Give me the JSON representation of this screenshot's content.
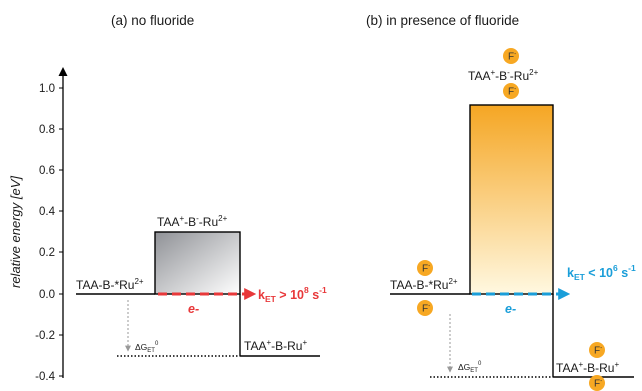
{
  "panels": {
    "a_title": "(a) no fluoride",
    "b_title": "(b) in presence of fluoride"
  },
  "axis": {
    "ylabel": "relative energy [eV]",
    "ticks": [
      "1.0",
      "0.8",
      "0.6",
      "0.4",
      "0.2",
      "0.0",
      "-0.2",
      "-0.4"
    ]
  },
  "panel_a": {
    "start_state": {
      "main": "TAA-B-*Ru",
      "sup": "2+"
    },
    "cs_state": {
      "p1": "TAA",
      "s1": "+",
      "p2": "-B",
      "s2": "-",
      "p3": "-Ru",
      "s3": "2+"
    },
    "final_state": {
      "p1": "TAA",
      "s1": "+",
      "p2": "-B-Ru",
      "s2": "+"
    },
    "electron": "e-",
    "rate": {
      "k": "k",
      "sub": "ET",
      "rel": " > 10",
      "exp": "8",
      "unit": " s",
      "unit_exp": "-1"
    },
    "dg": {
      "main": "ΔG",
      "sub": "ET",
      "sup": "0"
    },
    "colors": {
      "rate": "#e8383a",
      "box_dark": "#8f9196",
      "box_light": "#ffffff"
    }
  },
  "panel_b": {
    "start_state": {
      "main": "TAA-B-*Ru",
      "sup": "2+"
    },
    "cs_state": {
      "p1": "TAA",
      "s1": "+",
      "p2": "-B",
      "s2": "-",
      "p3": "-Ru",
      "s3": "2+"
    },
    "final_state": {
      "p1": "TAA",
      "s1": "+",
      "p2": "-B-Ru",
      "s2": "+"
    },
    "electron": "e-",
    "rate": {
      "k": "k",
      "sub": "ET",
      "rel": " < 10",
      "exp": "6",
      "unit": " s",
      "unit_exp": "-1"
    },
    "dg": {
      "main": "ΔG",
      "sub": "ET",
      "sup": "0"
    },
    "fluoride": {
      "symbol": "F",
      "charge": "-"
    },
    "colors": {
      "rate": "#1a9ed9",
      "box_dark": "#f5a623",
      "box_light": "#fff8e0",
      "fluoride": "#f7a823"
    }
  }
}
